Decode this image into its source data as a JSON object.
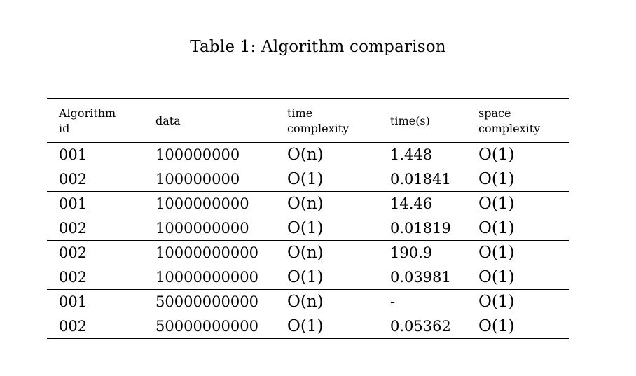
{
  "caption": "Table 1: Algorithm comparison",
  "headers": [
    "Algorithm\nid",
    "data",
    "time\ncomplexity",
    "time(s)",
    "space\ncomplexity"
  ],
  "header_lines": [
    [
      "Algorithm",
      "id"
    ],
    [
      "data"
    ],
    [
      "time",
      "complexity"
    ],
    [
      "time(s)"
    ],
    [
      "space",
      "complexity"
    ]
  ],
  "rows": [
    [
      "001",
      "100000000",
      "O(n)",
      "1.448",
      "O(1)"
    ],
    [
      "002",
      "100000000",
      "O(1)",
      "0.01841",
      "O(1)"
    ],
    [
      "001",
      "1000000000",
      "O(n)",
      "14.46",
      "O(1)"
    ],
    [
      "002",
      "1000000000",
      "O(1)",
      "0.01819",
      "O(1)"
    ],
    [
      "002",
      "10000000000",
      "O(n)",
      "190.9",
      "O(1)"
    ],
    [
      "002",
      "10000000000",
      "O(1)",
      "0.03981",
      "O(1)"
    ],
    [
      "001",
      "50000000000",
      "O(n)",
      "-",
      "O(1)"
    ],
    [
      "002",
      "50000000000",
      "O(1)",
      "0.05362",
      "O(1)"
    ]
  ]
}
